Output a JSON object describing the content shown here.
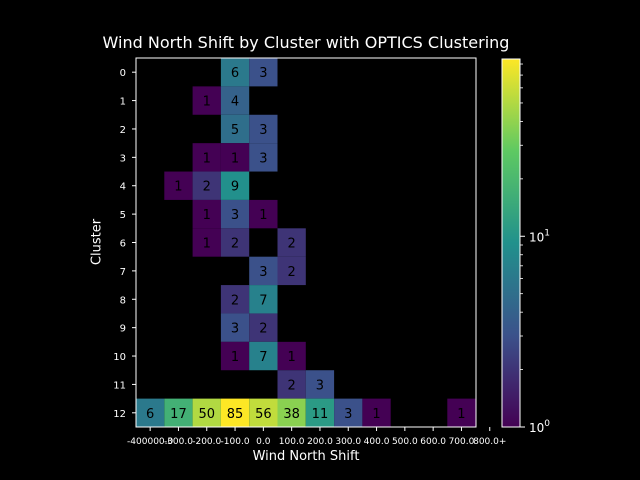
{
  "chart_data": {
    "type": "heatmap",
    "title": "Wind North Shift by Cluster with OPTICS Clustering",
    "xlabel": "Wind North Shift",
    "ylabel": "Cluster",
    "x_tick_labels": [
      "-400000.0",
      "-300.0",
      "-200.0",
      "-100.0",
      "0.0",
      "100.0",
      "200.0",
      "300.0",
      "400.0",
      "500.0",
      "600.0",
      "700.0",
      "800.0+"
    ],
    "y_tick_labels": [
      "0",
      "1",
      "2",
      "3",
      "4",
      "5",
      "6",
      "7",
      "8",
      "9",
      "10",
      "11",
      "12"
    ],
    "colorbar": {
      "scale": "log",
      "min": 1,
      "max": 85,
      "ticks": [
        "10^0",
        "10^1"
      ]
    },
    "colormap": [
      "#440154",
      "#3b528b",
      "#21918c",
      "#5ec962",
      "#fde725"
    ],
    "cells": [
      [
        0,
        3,
        6
      ],
      [
        0,
        4,
        3
      ],
      [
        1,
        2,
        1
      ],
      [
        1,
        3,
        4
      ],
      [
        2,
        3,
        5
      ],
      [
        2,
        4,
        3
      ],
      [
        3,
        2,
        1
      ],
      [
        3,
        3,
        1
      ],
      [
        3,
        4,
        3
      ],
      [
        4,
        1,
        1
      ],
      [
        4,
        2,
        2
      ],
      [
        4,
        3,
        9
      ],
      [
        5,
        2,
        1
      ],
      [
        5,
        3,
        3
      ],
      [
        5,
        4,
        1
      ],
      [
        6,
        2,
        1
      ],
      [
        6,
        3,
        2
      ],
      [
        6,
        5,
        2
      ],
      [
        7,
        4,
        3
      ],
      [
        7,
        5,
        2
      ],
      [
        8,
        3,
        2
      ],
      [
        8,
        4,
        7
      ],
      [
        9,
        3,
        3
      ],
      [
        9,
        4,
        2
      ],
      [
        10,
        3,
        1
      ],
      [
        10,
        4,
        7
      ],
      [
        10,
        5,
        1
      ],
      [
        11,
        5,
        2
      ],
      [
        11,
        6,
        3
      ],
      [
        12,
        0,
        6
      ],
      [
        12,
        1,
        17
      ],
      [
        12,
        2,
        50
      ],
      [
        12,
        3,
        85
      ],
      [
        12,
        4,
        56
      ],
      [
        12,
        5,
        38
      ],
      [
        12,
        6,
        11
      ],
      [
        12,
        7,
        3
      ],
      [
        12,
        8,
        1
      ],
      [
        12,
        11,
        1
      ]
    ]
  }
}
